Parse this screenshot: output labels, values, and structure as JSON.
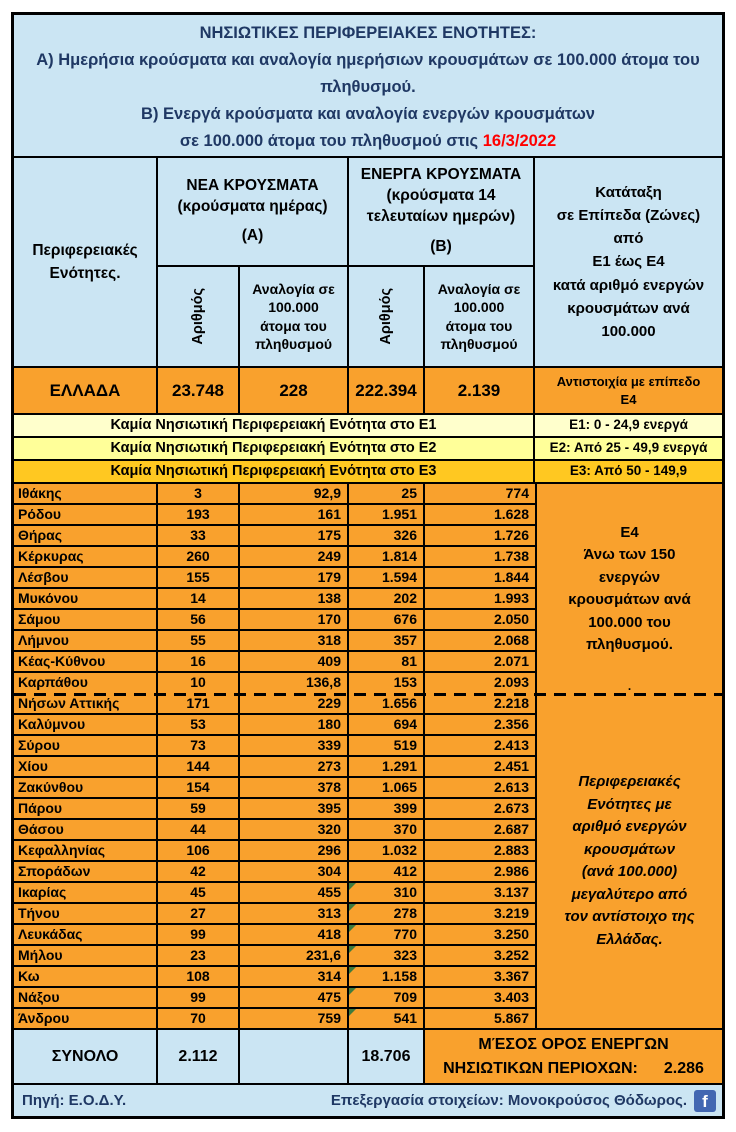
{
  "colors": {
    "light_blue": "#CBE5F3",
    "orange": "#F9A12D",
    "navy": "#1F3864",
    "red": "#FF0000",
    "gold": "#FFC821",
    "marker_green": "#3E7B3E",
    "facebook_blue": "#4267B2",
    "border": "#000000"
  },
  "title_block": {
    "heading": "ΝΗΣΙΩΤΙΚΕΣ ΠΕΡΙΦΕΡΕΙΑΚΕΣ ΕΝΟΤΗΤΕΣ:",
    "line_a": "Α) Ημερήσια κρούσματα και αναλογία ημερήσιων κρουσμάτων σε 100.000 άτομα του πληθυσμού.",
    "line_b": "Β) Ενεργά κρούσματα και αναλογία ενεργών κρουσμάτων",
    "line_b2": "σε 100.000 άτομα του πληθυσμού στις",
    "date": "16/3/2022"
  },
  "header": {
    "region_col": "Περιφερειακές\nΕνότητες.",
    "group_a_title": "ΝΕΑ ΚΡΟΥΣΜΑΤΑ\n(κρούσματα ημέρας)",
    "group_a_tag": "(Α)",
    "group_b_title": "ΕΝΕΡΓΑ ΚΡΟΥΣΜΑΤΑ\n(κρούσματα 14\nτελευταίων ημερών)",
    "group_b_tag": "(Β)",
    "count_col": "Αριθμός",
    "ratio_col": "Αναλογία σε\n100.000\nάτομα του\nπληθυσμού",
    "zones_col": "Κατάταξη\nσε Επίπεδα (Ζώνες)\nαπό\nΕ1 έως Ε4\nκατά αριθμό ενεργών\nκρουσμάτων ανά\n100.000"
  },
  "greece_row": {
    "label": "ΕΛΛΑΔΑ",
    "new_cases": "23.748",
    "new_ratio": "228",
    "active_cases": "222.394",
    "active_ratio": "2.139",
    "zone_note": "Αντιστοιχία με επίπεδο\nΕ4"
  },
  "zone_rows": [
    {
      "message": "Καμία Νησιωτική Περιφερειακή Ενότητα στο Ε1",
      "range": "Ε1: 0 - 24,9 ενεργά",
      "color": "#FFFFCC"
    },
    {
      "message": "Καμία Νησιωτική Περιφερειακή Ενότητα στο Ε2",
      "range": "Ε2: Από 25 - 49,9 ενεργά",
      "color": "#FFFF99"
    },
    {
      "message": "Καμία Νησιωτική Περιφερειακή Ενότητα στο Ε3",
      "range": "Ε3: Από 50 - 149,9",
      "color": "#FFC821"
    }
  ],
  "rows": [
    {
      "region": "Ιθάκης",
      "new_cases": "3",
      "new_ratio": "92,9",
      "active_cases": "25",
      "active_ratio": "774",
      "marker": false
    },
    {
      "region": "Ρόδου",
      "new_cases": "193",
      "new_ratio": "161",
      "active_cases": "1.951",
      "active_ratio": "1.628",
      "marker": false
    },
    {
      "region": "Θήρας",
      "new_cases": "33",
      "new_ratio": "175",
      "active_cases": "326",
      "active_ratio": "1.726",
      "marker": false
    },
    {
      "region": "Κέρκυρας",
      "new_cases": "260",
      "new_ratio": "249",
      "active_cases": "1.814",
      "active_ratio": "1.738",
      "marker": false
    },
    {
      "region": "Λέσβου",
      "new_cases": "155",
      "new_ratio": "179",
      "active_cases": "1.594",
      "active_ratio": "1.844",
      "marker": false
    },
    {
      "region": "Μυκόνου",
      "new_cases": "14",
      "new_ratio": "138",
      "active_cases": "202",
      "active_ratio": "1.993",
      "marker": false
    },
    {
      "region": "Σάμου",
      "new_cases": "56",
      "new_ratio": "170",
      "active_cases": "676",
      "active_ratio": "2.050",
      "marker": false
    },
    {
      "region": "Λήμνου",
      "new_cases": "55",
      "new_ratio": "318",
      "active_cases": "357",
      "active_ratio": "2.068",
      "marker": false
    },
    {
      "region": "Κέας-Κύθνου",
      "new_cases": "16",
      "new_ratio": "409",
      "active_cases": "81",
      "active_ratio": "2.071",
      "marker": false
    },
    {
      "region": "Καρπάθου",
      "new_cases": "10",
      "new_ratio": "136,8",
      "active_cases": "153",
      "active_ratio": "2.093",
      "marker": false
    },
    {
      "region": "Νήσων Αττικής",
      "new_cases": "171",
      "new_ratio": "229",
      "active_cases": "1.656",
      "active_ratio": "2.218",
      "marker": false
    },
    {
      "region": "Καλύμνου",
      "new_cases": "53",
      "new_ratio": "180",
      "active_cases": "694",
      "active_ratio": "2.356",
      "marker": false
    },
    {
      "region": "Σύρου",
      "new_cases": "73",
      "new_ratio": "339",
      "active_cases": "519",
      "active_ratio": "2.413",
      "marker": false
    },
    {
      "region": "Χίου",
      "new_cases": "144",
      "new_ratio": "273",
      "active_cases": "1.291",
      "active_ratio": "2.451",
      "marker": false
    },
    {
      "region": "Ζακύνθου",
      "new_cases": "154",
      "new_ratio": "378",
      "active_cases": "1.065",
      "active_ratio": "2.613",
      "marker": false
    },
    {
      "region": "Πάρου",
      "new_cases": "59",
      "new_ratio": "395",
      "active_cases": "399",
      "active_ratio": "2.673",
      "marker": false
    },
    {
      "region": "Θάσου",
      "new_cases": "44",
      "new_ratio": "320",
      "active_cases": "370",
      "active_ratio": "2.687",
      "marker": false
    },
    {
      "region": "Κεφαλληνίας",
      "new_cases": "106",
      "new_ratio": "296",
      "active_cases": "1.032",
      "active_ratio": "2.883",
      "marker": false
    },
    {
      "region": "Σποράδων",
      "new_cases": "42",
      "new_ratio": "304",
      "active_cases": "412",
      "active_ratio": "2.986",
      "marker": false
    },
    {
      "region": "Ικαρίας",
      "new_cases": "45",
      "new_ratio": "455",
      "active_cases": "310",
      "active_ratio": "3.137",
      "marker": true
    },
    {
      "region": "Τήνου",
      "new_cases": "27",
      "new_ratio": "313",
      "active_cases": "278",
      "active_ratio": "3.219",
      "marker": true
    },
    {
      "region": "Λευκάδας",
      "new_cases": "99",
      "new_ratio": "418",
      "active_cases": "770",
      "active_ratio": "3.250",
      "marker": true
    },
    {
      "region": "Μήλου",
      "new_cases": "23",
      "new_ratio": "231,6",
      "active_cases": "323",
      "active_ratio": "3.252",
      "marker": true
    },
    {
      "region": "Κω",
      "new_cases": "108",
      "new_ratio": "314",
      "active_cases": "1.158",
      "active_ratio": "3.367",
      "marker": true
    },
    {
      "region": "Νάξου",
      "new_cases": "99",
      "new_ratio": "475",
      "active_cases": "709",
      "active_ratio": "3.403",
      "marker": true
    },
    {
      "region": "Άνδρου",
      "new_cases": "70",
      "new_ratio": "759",
      "active_cases": "541",
      "active_ratio": "5.867",
      "marker": true
    }
  ],
  "side_notes": {
    "e4": "Ε4\nΆνω των 150\nενεργών\nκρουσμάτων ανά\n100.000 του\nπληθυσμού.",
    "dot": ".",
    "above_greece": "Περιφερειακές\nΕνότητες με\nαριθμό ενεργών\nκρουσμάτων\n(ανά 100.000)\nμεγαλύτερο από\nτον αντίστοιχο της\nΕλλάδας."
  },
  "total_row": {
    "label": "ΣΥΝΟΛΟ",
    "new_cases": "2.112",
    "new_ratio": "",
    "active_cases": "18.706",
    "avg_label_line1": "ΜΈΣΟΣ ΟΡΟΣ ΕΝΕΡΓΩΝ",
    "avg_label_line2": "ΝΗΣΙΩΤΙΚΩΝ ΠΕΡΙΟΧΩΝ:",
    "avg_value": "2.286"
  },
  "footer": {
    "source": "Πηγή: Ε.Ο.Δ.Υ.",
    "credit": "Επεξεργασία στοιχείων: Μονοκρούσος Θόδωρος.",
    "facebook_letter": "f"
  }
}
